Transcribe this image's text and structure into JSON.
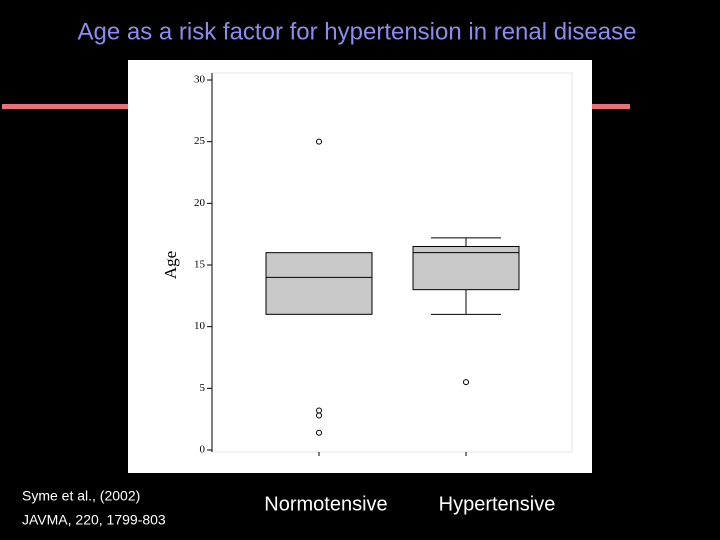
{
  "chart_data": {
    "type": "box",
    "title": "Age as a risk factor for hypertension in renal disease",
    "ylabel": "Age",
    "categories": [
      "Normotensive",
      "Hypertensive"
    ],
    "boxes": [
      {
        "q1": 11,
        "median": 14,
        "q3": 16,
        "outliers": [
          25,
          3.2,
          2.8,
          1.4
        ]
      },
      {
        "q1": 13,
        "median": 16,
        "q3": 16.5,
        "whisker_low": 11,
        "whisker_high": 17.2,
        "outliers": [
          5.5
        ]
      }
    ],
    "color": "#c8c8c8",
    "ylim": [
      0,
      30
    ],
    "yticks": [
      0,
      5,
      10,
      15,
      20,
      25,
      30
    ]
  },
  "citation": [
    "Syme et al., (2002)",
    "JAVMA, 220, 1799-803"
  ]
}
